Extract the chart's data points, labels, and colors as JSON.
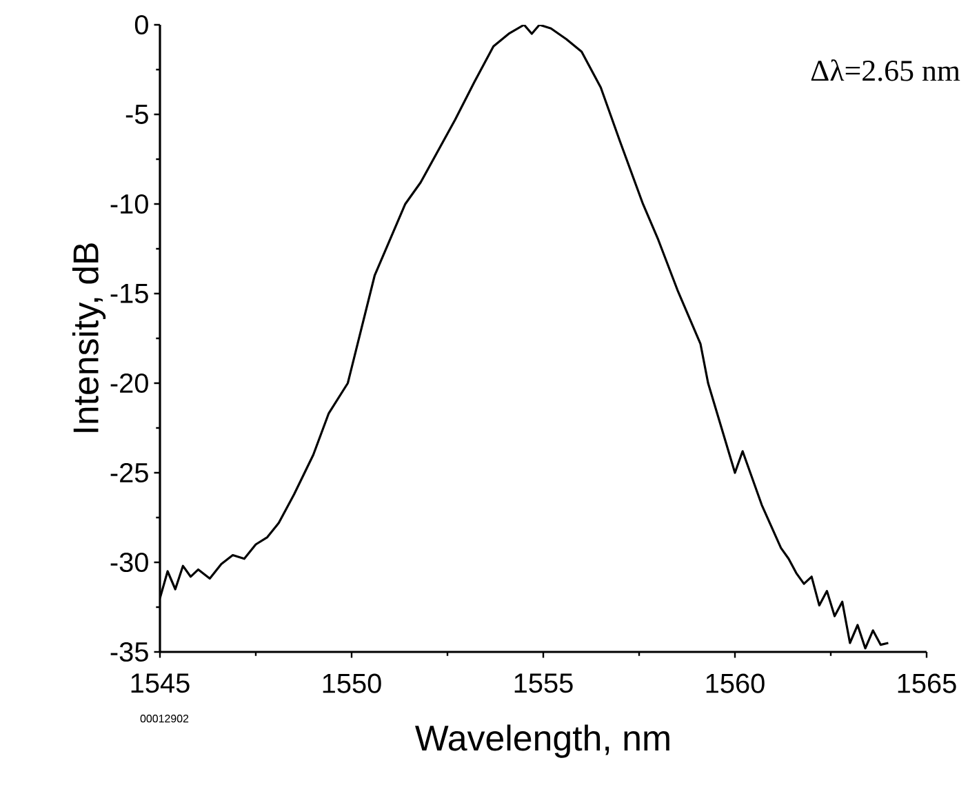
{
  "chart_data": {
    "type": "line",
    "xlabel": "Wavelength, nm",
    "ylabel": "Intensity, dB",
    "annotations": [
      "Δλ=2.65 nm",
      "00012902"
    ],
    "x": [
      1545,
      1545.2,
      1545.4,
      1545.6,
      1545.8,
      1546,
      1546.3,
      1546.6,
      1546.9,
      1547.2,
      1547.5,
      1547.8,
      1548.1,
      1548.5,
      1549,
      1549.4,
      1549.9,
      1550.6,
      1551.4,
      1551.8,
      1552.7,
      1553.2,
      1553.7,
      1554.1,
      1554.5,
      1554.7,
      1554.9,
      1555.2,
      1555.6,
      1556,
      1556.5,
      1557,
      1557.6,
      1558,
      1558.5,
      1559.1,
      1559.3,
      1560,
      1560.2,
      1560.7,
      1561.2,
      1561.4,
      1561.6,
      1561.8,
      1562,
      1562.2,
      1562.4,
      1562.6,
      1562.8,
      1563,
      1563.2,
      1563.4,
      1563.6,
      1563.8,
      1564
    ],
    "values": [
      -32,
      -30.5,
      -31.5,
      -30.2,
      -30.8,
      -30.4,
      -30.9,
      -30.1,
      -29.6,
      -29.8,
      -29,
      -28.6,
      -27.8,
      -26.2,
      -24,
      -21.7,
      -20,
      -14,
      -10,
      -8.8,
      -5.3,
      -3.2,
      -1.2,
      -0.5,
      0,
      -0.5,
      0,
      -0.2,
      -0.8,
      -1.5,
      -3.5,
      -6.5,
      -10,
      -12,
      -14.8,
      -17.8,
      -20,
      -25,
      -23.8,
      -26.8,
      -29.2,
      -29.8,
      -30.6,
      -31.2,
      -30.8,
      -32.4,
      -31.6,
      -33,
      -32.2,
      -34.5,
      -33.5,
      -34.8,
      -33.8,
      -34.6,
      -34.5
    ],
    "color": "#000000",
    "xlim": [
      1545,
      1565
    ],
    "ylim": [
      -35,
      0
    ],
    "xticks": [
      1545,
      1550,
      1555,
      1560,
      1565
    ],
    "yticks": [
      0,
      -5,
      -10,
      -15,
      -20,
      -25,
      -30,
      -35
    ],
    "grid": false,
    "marker": "none",
    "line_style": "solid"
  }
}
